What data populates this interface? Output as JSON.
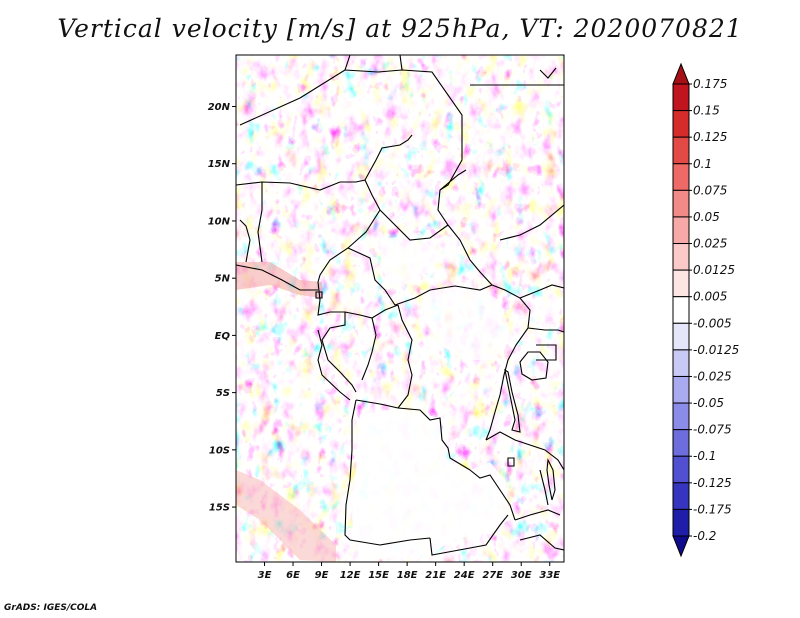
{
  "title": "Vertical velocity [m/s] at 925hPa, VT: 2020070821",
  "footer": "GrADS: IGES/COLA",
  "map": {
    "lat_ticks": [
      "20N",
      "15N",
      "10N",
      "5N",
      "EQ",
      "5S",
      "10S",
      "15S"
    ],
    "lon_ticks": [
      "3E",
      "6E",
      "9E",
      "12E",
      "15E",
      "18E",
      "21E",
      "24E",
      "27E",
      "30E",
      "33E"
    ],
    "extent": {
      "lon_min": 0.0,
      "lon_max": 34.5,
      "lat_min": -19.8,
      "lat_max": 24.5
    }
  },
  "colorbar": {
    "levels": [
      "0.175",
      "0.15",
      "0.125",
      "0.1",
      "0.075",
      "0.05",
      "0.025",
      "0.0125",
      "0.005",
      "-0.005",
      "-0.0125",
      "-0.025",
      "-0.05",
      "-0.075",
      "-0.1",
      "-0.125",
      "-0.175",
      "-0.2"
    ],
    "colors": [
      "#a50f15",
      "#c0151f",
      "#d52b2b",
      "#e34a45",
      "#ee6a66",
      "#f28a88",
      "#f7a9a7",
      "#fbcac8",
      "#fde5e4",
      "#ffffff",
      "#e6e6fb",
      "#c9c9f6",
      "#aaaaf0",
      "#8b8be8",
      "#6d6ddd",
      "#5050d0",
      "#3535c0",
      "#1e1ea8",
      "#100a8c"
    ]
  },
  "chart_data": {
    "type": "heatmap",
    "title": "Vertical velocity [m/s] at 925hPa, VT: 2020070821",
    "variable": "Vertical velocity",
    "units": "m/s",
    "level": "925hPa",
    "valid_time": "2020070821",
    "x_range": [
      0.0,
      34.5
    ],
    "y_range": [
      -19.8,
      24.5
    ],
    "contour_levels": [
      -0.2,
      -0.175,
      -0.125,
      -0.1,
      -0.075,
      -0.05,
      -0.025,
      -0.0125,
      -0.005,
      0.005,
      0.0125,
      0.025,
      0.05,
      0.075,
      0.1,
      0.125,
      0.15,
      0.175
    ]
  }
}
